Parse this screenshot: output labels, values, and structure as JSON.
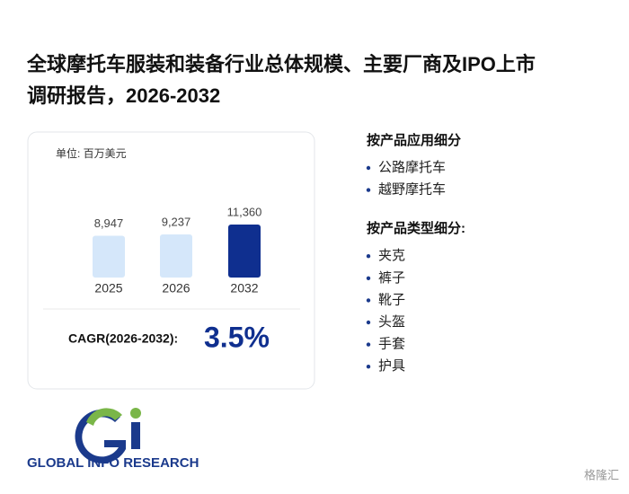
{
  "title_lines": [
    "全球摩托车服装和装备行业总体规模、主要厂商及IPO上市",
    "调研报告，2026-2032"
  ],
  "chart_data": {
    "type": "bar",
    "unit": "单位: 百万美元",
    "categories": [
      "2025",
      "2026",
      "2032"
    ],
    "values": [
      8947,
      9237,
      11360
    ],
    "value_labels": [
      "8,947",
      "9,237",
      "11,360"
    ],
    "colors": [
      "#d5e7fa",
      "#d5e7fa",
      "#0f2f8f"
    ]
  },
  "cagr": {
    "label": "CAGR(2026-2032):",
    "value": "3.5%"
  },
  "segments": [
    {
      "heading": "按产品应用细分",
      "items": [
        "公路摩托车",
        "越野摩托车"
      ]
    },
    {
      "heading": "按产品类型细分:",
      "items": [
        "夹克",
        "裤子",
        "靴子",
        "头盔",
        "手套",
        "护具"
      ]
    }
  ],
  "logo_text": "GLOBAL INFO RESEARCH",
  "corner_brand": "格隆汇"
}
